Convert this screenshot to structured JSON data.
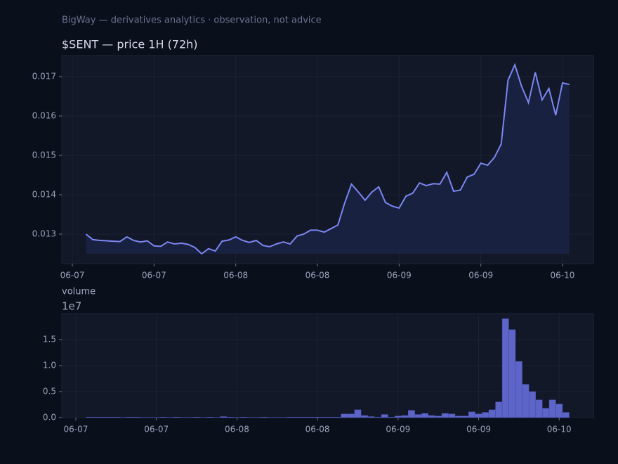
{
  "header": "BigWay — derivatives analytics · observation, not advice",
  "chart_data": [
    {
      "type": "line",
      "title": "$SENT — price 1H (72h)",
      "color": "#7b86f0",
      "fill": "#1a2242",
      "grid": true,
      "x": [
        2,
        3,
        4,
        5,
        6,
        7,
        8,
        9,
        10,
        11,
        12,
        13,
        14,
        15,
        16,
        17,
        18,
        19,
        20,
        21,
        22,
        23,
        24,
        25,
        26,
        27,
        28,
        29,
        30,
        31,
        32,
        33,
        34,
        35,
        36,
        37,
        38,
        39,
        40,
        41,
        42,
        43,
        44,
        45,
        46,
        47,
        48,
        49,
        50,
        51,
        52,
        53,
        54,
        55,
        56,
        57,
        58,
        59,
        60,
        61,
        62,
        63,
        64,
        65,
        66,
        67,
        68,
        69,
        70,
        71,
        72,
        73
      ],
      "values": [
        0.013,
        0.01286,
        0.01284,
        0.01283,
        0.01282,
        0.01281,
        0.01293,
        0.01284,
        0.0128,
        0.01283,
        0.0127,
        0.01269,
        0.0128,
        0.01275,
        0.01277,
        0.01274,
        0.01266,
        0.0125,
        0.01263,
        0.01257,
        0.01282,
        0.01285,
        0.01293,
        0.01284,
        0.01279,
        0.01284,
        0.01271,
        0.01268,
        0.01275,
        0.0128,
        0.01275,
        0.01295,
        0.013,
        0.0131,
        0.0131,
        0.01305,
        0.01314,
        0.01323,
        0.01379,
        0.01427,
        0.01407,
        0.01386,
        0.01407,
        0.0142,
        0.0138,
        0.01371,
        0.01366,
        0.01396,
        0.01404,
        0.0143,
        0.01423,
        0.01428,
        0.01427,
        0.01457,
        0.01409,
        0.01412,
        0.01445,
        0.01452,
        0.0148,
        0.01475,
        0.01495,
        0.01529,
        0.01691,
        0.0173,
        0.01675,
        0.01634,
        0.01711,
        0.01641,
        0.0167,
        0.01602,
        0.01684,
        0.0168
      ],
      "xlim": [
        -1.55,
        76.54
      ],
      "xticks": [
        {
          "value": 0,
          "label": "06-07"
        },
        {
          "value": 12,
          "label": "06-07"
        },
        {
          "value": 24,
          "label": "06-08"
        },
        {
          "value": 36,
          "label": "06-08"
        },
        {
          "value": 48,
          "label": "06-09"
        },
        {
          "value": 60,
          "label": "06-09"
        },
        {
          "value": 72,
          "label": "06-10"
        }
      ],
      "ylim": [
        0.01225,
        0.017536
      ],
      "yticks": [
        0.013,
        0.014,
        0.015,
        0.016,
        0.017
      ]
    },
    {
      "type": "bar",
      "title": "volume",
      "offset_label": "1e7",
      "color": "#5d66c8",
      "grid": true,
      "x": [
        2,
        3,
        4,
        5,
        6,
        7,
        8,
        9,
        10,
        11,
        12,
        13,
        14,
        15,
        16,
        17,
        18,
        19,
        20,
        21,
        22,
        23,
        24,
        25,
        26,
        27,
        28,
        29,
        30,
        31,
        32,
        33,
        34,
        35,
        36,
        37,
        38,
        39,
        40,
        41,
        42,
        43,
        44,
        45,
        46,
        47,
        48,
        49,
        50,
        51,
        52,
        53,
        54,
        55,
        56,
        57,
        58,
        59,
        60,
        61,
        62,
        63,
        64,
        65,
        66,
        67,
        68,
        69,
        70,
        71,
        72,
        73
      ],
      "values": [
        0.01,
        0.01,
        0.01,
        0.01,
        0.01,
        0.005,
        0.01,
        0.01,
        0.005,
        0.005,
        0.005,
        0.01,
        0.005,
        0.01,
        0.005,
        0.005,
        0.01,
        0.005,
        0.01,
        0.005,
        0.02,
        0.01,
        0.005,
        0.01,
        0.005,
        0.005,
        0.01,
        0.005,
        0.005,
        0.005,
        0.01,
        0.01,
        0.01,
        0.01,
        0.01,
        0.01,
        0.01,
        0.01,
        0.07,
        0.07,
        0.15,
        0.04,
        0.02,
        0.01,
        0.06,
        0.01,
        0.03,
        0.04,
        0.14,
        0.06,
        0.08,
        0.04,
        0.03,
        0.08,
        0.07,
        0.03,
        0.03,
        0.11,
        0.07,
        0.1,
        0.15,
        0.3,
        1.9,
        1.69,
        1.08,
        0.64,
        0.5,
        0.34,
        0.18,
        0.34,
        0.26,
        0.1
      ],
      "xlim": [
        -2.09,
        77.1
      ],
      "xticks": [
        {
          "value": 0,
          "label": "06-07"
        },
        {
          "value": 12,
          "label": "06-07"
        },
        {
          "value": 24,
          "label": "06-08"
        },
        {
          "value": 36,
          "label": "06-08"
        },
        {
          "value": 48,
          "label": "06-09"
        },
        {
          "value": 60,
          "label": "06-09"
        },
        {
          "value": 72,
          "label": "06-10"
        }
      ],
      "ylim": [
        0,
        2.0
      ],
      "yticks": [
        {
          "value": 0,
          "label": "0.0"
        },
        0.5,
        {
          "value": 1.0,
          "label": "1.0"
        },
        1.5
      ]
    }
  ]
}
